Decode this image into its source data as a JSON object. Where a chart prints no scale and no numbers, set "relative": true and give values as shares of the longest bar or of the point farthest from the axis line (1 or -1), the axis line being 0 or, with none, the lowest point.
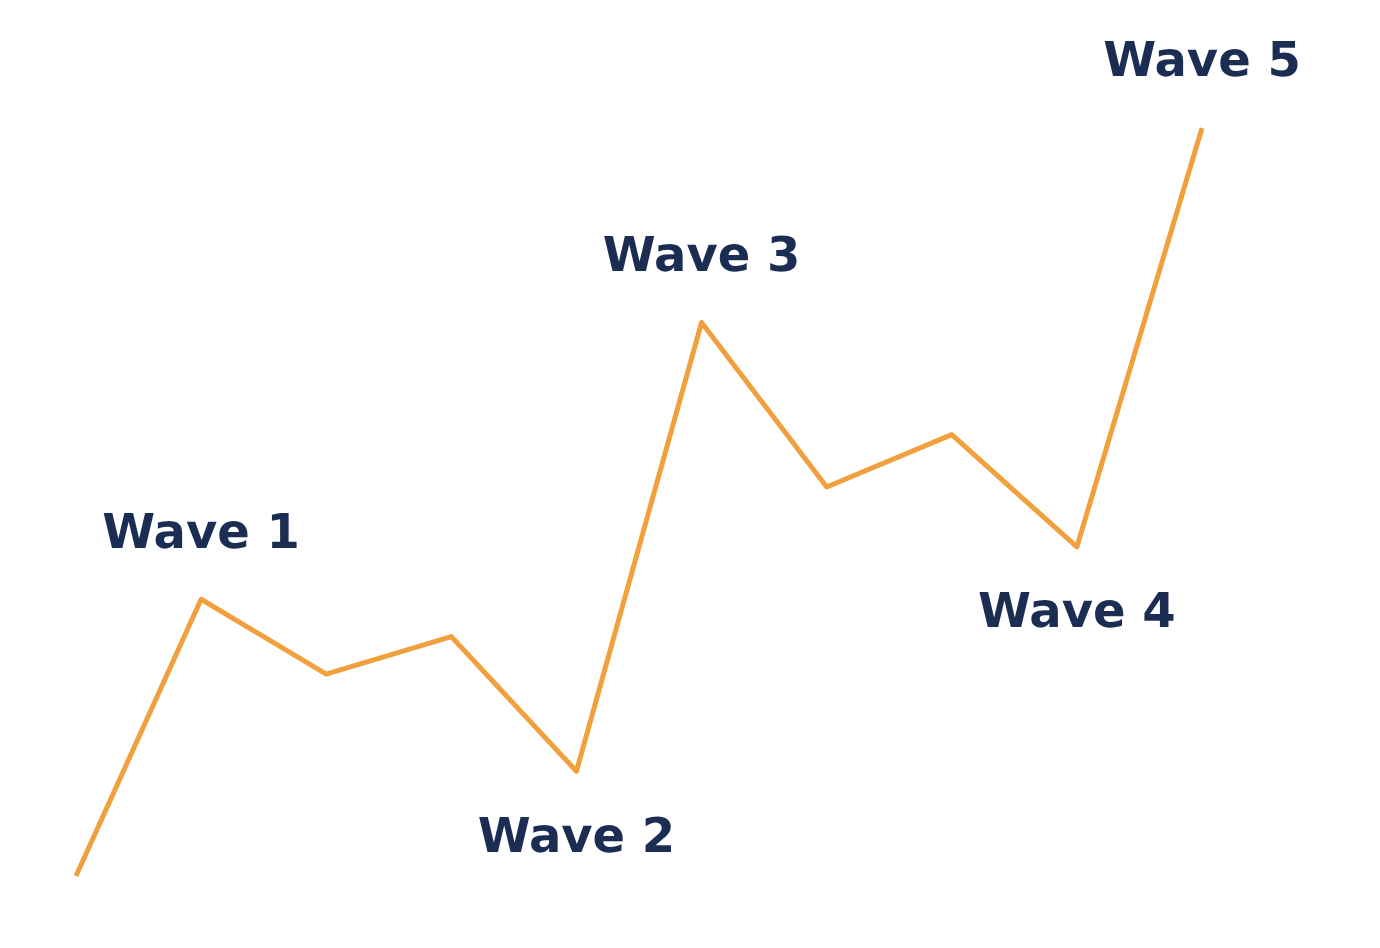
{
  "chart_data": {
    "type": "line",
    "relative": true,
    "color": "#f0a03c",
    "marker": "none",
    "categories": [
      null,
      null,
      null,
      null,
      null,
      null,
      null,
      null,
      null,
      null
    ],
    "values": [
      0,
      0.37,
      0.27,
      0.32,
      0.14,
      0.74,
      0.52,
      0.59,
      0.44,
      1
    ],
    "annotations": [
      "Wave 1",
      "Wave 2",
      "Wave 3",
      "Wave 4",
      "Wave 5"
    ]
  }
}
